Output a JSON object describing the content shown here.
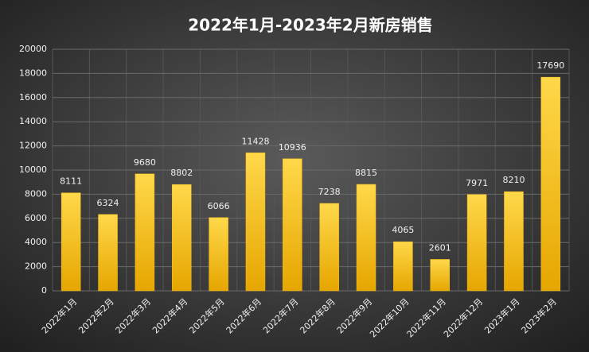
{
  "chart_data": {
    "type": "bar",
    "title": "2022年1月-2023年2月新房销售",
    "categories": [
      "2022年1月",
      "2022年2月",
      "2022年3月",
      "2022年4月",
      "2022年5月",
      "2022年6月",
      "2022年7月",
      "2022年8月",
      "2022年9月",
      "2022年10月",
      "2022年11月",
      "2022年12月",
      "2023年1月",
      "2023年2月"
    ],
    "values": [
      8111,
      6324,
      9680,
      8802,
      6066,
      11428,
      10936,
      7238,
      8815,
      4065,
      2601,
      7971,
      8210,
      17690
    ],
    "color": "#f7be16",
    "ylim": [
      0,
      20000
    ],
    "yticks": [
      0,
      2000,
      4000,
      6000,
      8000,
      10000,
      12000,
      14000,
      16000,
      18000,
      20000
    ],
    "grid": true
  }
}
